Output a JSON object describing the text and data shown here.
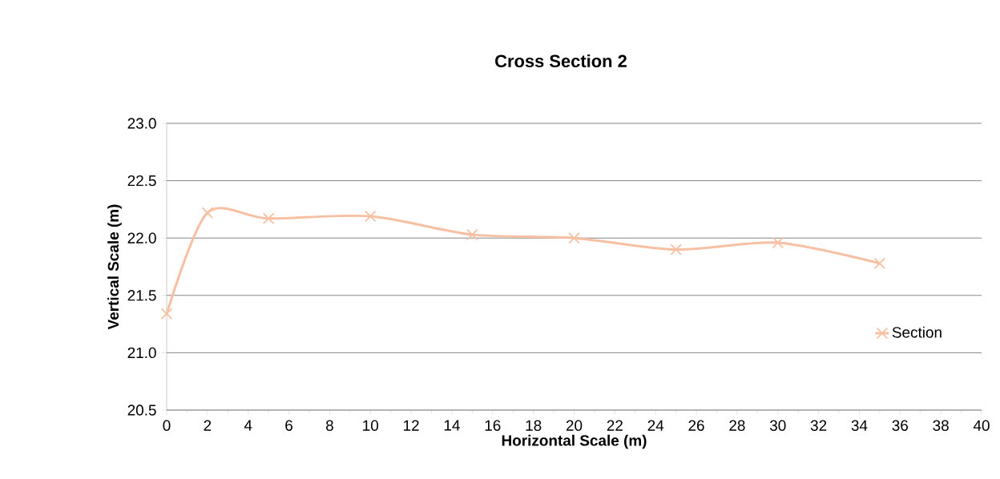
{
  "chart_data": {
    "type": "line",
    "title": "Cross Section  2",
    "xlabel": "Horizontal Scale (m)",
    "ylabel": "Vertical Scale (m)",
    "x": [
      0,
      2,
      5,
      10,
      15,
      20,
      25,
      30,
      35
    ],
    "series": [
      {
        "name": "Section",
        "color": "#f7c0a2",
        "values": [
          21.34,
          22.22,
          22.17,
          22.19,
          22.03,
          22.0,
          21.9,
          21.96,
          21.78
        ]
      }
    ],
    "xlim": [
      0,
      40
    ],
    "xticks": [
      0,
      2,
      4,
      6,
      8,
      10,
      12,
      14,
      16,
      18,
      20,
      22,
      24,
      26,
      28,
      30,
      32,
      34,
      36,
      38,
      40
    ],
    "ylim": [
      20.5,
      23.0
    ],
    "yticks": [
      {
        "value": 20.5,
        "label": "20.5"
      },
      {
        "value": 21.0,
        "label": "21.0"
      },
      {
        "value": 21.5,
        "label": "21.5"
      },
      {
        "value": 22.0,
        "label": "22.0"
      },
      {
        "value": 22.5,
        "label": "22.5"
      },
      {
        "value": 23.0,
        "label": "23.0"
      }
    ],
    "grid": "y",
    "legend": "right",
    "marker": "cross",
    "line_style": "solid"
  }
}
